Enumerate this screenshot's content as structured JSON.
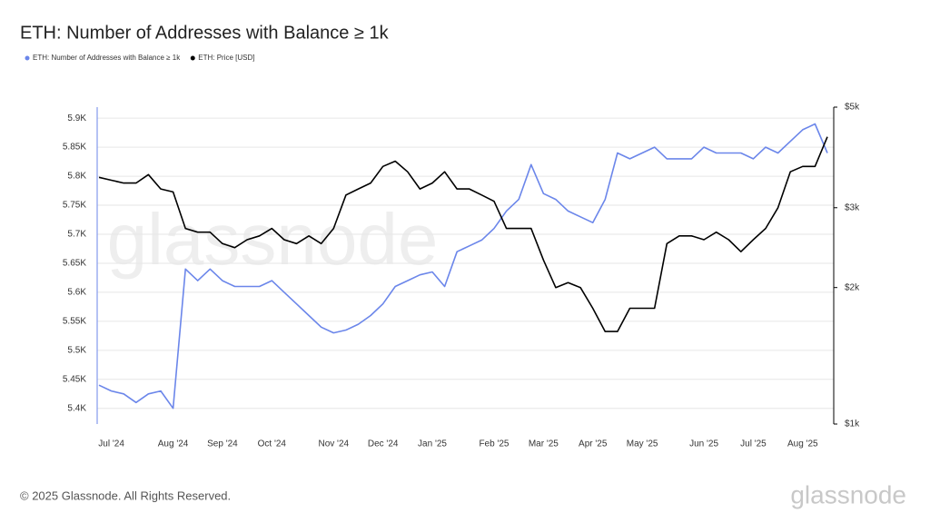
{
  "chart_data": {
    "type": "line",
    "title": "ETH: Number of Addresses with Balance ≥ 1k",
    "watermark": "glassnode",
    "footer": "© 2025 Glassnode. All Rights Reserved.",
    "logo": "glassnode",
    "categories": [
      null,
      "Jul '24",
      null,
      null,
      null,
      null,
      "Aug '24",
      null,
      null,
      null,
      "Sep '24",
      null,
      null,
      null,
      "Oct '24",
      null,
      null,
      null,
      null,
      "Nov '24",
      null,
      null,
      null,
      "Dec '24",
      null,
      null,
      null,
      "Jan '25",
      null,
      null,
      null,
      null,
      "Feb '25",
      null,
      null,
      null,
      "Mar '25",
      null,
      null,
      null,
      "Apr '25",
      null,
      null,
      null,
      "May '25",
      null,
      null,
      null,
      null,
      "Jun '25",
      null,
      null,
      null,
      "Jul '25",
      null,
      null,
      null,
      "Aug '25",
      null,
      null
    ],
    "series": [
      {
        "name": "ETH: Number of Addresses with Balance ≥ 1k",
        "color": "#6b86ea",
        "values": [
          5440,
          5430,
          5425,
          5410,
          5425,
          5430,
          5400,
          5640,
          5620,
          5640,
          5620,
          5610,
          5610,
          5610,
          5620,
          5600,
          5580,
          5560,
          5540,
          5530,
          5535,
          5545,
          5560,
          5580,
          5610,
          5620,
          5630,
          5635,
          5610,
          5670,
          5680,
          5690,
          5710,
          5740,
          5760,
          5820,
          5770,
          5760,
          5740,
          5730,
          5720,
          5760,
          5840,
          5830,
          5840,
          5850,
          5830,
          5830,
          5830,
          5850,
          5840,
          5840,
          5840,
          5830,
          5850,
          5840,
          5860,
          5880,
          5890,
          5840
        ]
      },
      {
        "name": "ETH: Price [USD]",
        "color": "#000000",
        "axis": "y2",
        "values": [
          3500,
          3450,
          3400,
          3400,
          3550,
          3300,
          3250,
          2700,
          2650,
          2650,
          2500,
          2450,
          2550,
          2600,
          2700,
          2550,
          2500,
          2600,
          2500,
          2700,
          3200,
          3300,
          3400,
          3700,
          3800,
          3600,
          3300,
          3400,
          3600,
          3300,
          3300,
          3200,
          3100,
          2700,
          2700,
          2700,
          2300,
          2000,
          2050,
          2000,
          1800,
          1600,
          1600,
          1800,
          1800,
          1800,
          2500,
          2600,
          2600,
          2550,
          2650,
          2550,
          2400,
          2550,
          2700,
          3000,
          3600,
          3700,
          3700,
          4300
        ]
      }
    ],
    "ylim": [
      5373,
      5919
    ],
    "yticks": [
      {
        "value": 5400,
        "label": "5.4K"
      },
      {
        "value": 5450,
        "label": "5.45K"
      },
      {
        "value": 5500,
        "label": "5.5K"
      },
      {
        "value": 5550,
        "label": "5.55K"
      },
      {
        "value": 5600,
        "label": "5.6K"
      },
      {
        "value": 5650,
        "label": "5.65K"
      },
      {
        "value": 5700,
        "label": "5.7K"
      },
      {
        "value": 5750,
        "label": "5.75K"
      },
      {
        "value": 5800,
        "label": "5.8K"
      },
      {
        "value": 5850,
        "label": "5.85K"
      },
      {
        "value": 5900,
        "label": "5.9K"
      }
    ],
    "y2lim": [
      1000,
      5000
    ],
    "y2scale": "log",
    "y2ticks": [
      {
        "value": 1000,
        "label": "$1k"
      },
      {
        "value": 2000,
        "label": "$2k"
      },
      {
        "value": 3000,
        "label": "$3k"
      },
      {
        "value": 5000,
        "label": "$5k"
      }
    ],
    "grid": true
  }
}
